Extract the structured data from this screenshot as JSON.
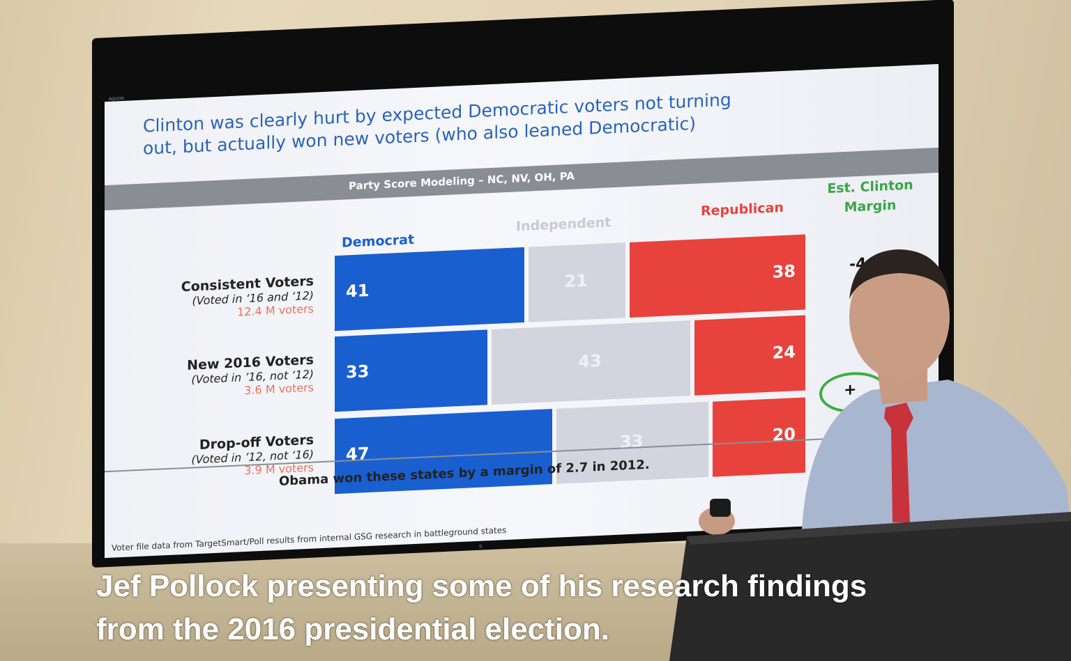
{
  "slide": {
    "brand": "AQUOS",
    "headline_line1": "Clinton was clearly hurt by expected Democratic voters not turning",
    "headline_line2": "out, but actually won new voters (who also leaned Democratic)",
    "band_title": "Party Score Modeling – NC, NV, OH, PA",
    "columns": {
      "democrat": "Democrat",
      "independent": "Independent",
      "republican": "Republican",
      "margin_line1": "Est. Clinton",
      "margin_line2": "Margin"
    },
    "rows": [
      {
        "title": "Consistent Voters",
        "sub": "(Voted in ‘16 and ‘12)",
        "count": "12.4 M voters",
        "dem": "41",
        "ind": "21",
        "rep": "38",
        "margin": "-4"
      },
      {
        "title": "New 2016 Voters",
        "sub": "(Voted in ’16, not ‘12)",
        "count": "3.6 M voters",
        "dem": "33",
        "ind": "43",
        "rep": "24",
        "margin": "+"
      },
      {
        "title": "Drop-off Voters",
        "sub": "(Voted in ’12, not ‘16)",
        "count": "3.9 M voters",
        "dem": "47",
        "ind": "33",
        "rep": "20",
        "margin": "+"
      }
    ],
    "footnote": "Obama won these states by a margin of 2.7 in 2012.",
    "source": "Voter file data from TargetSmart/Poll results from internal GSG research in battleground states"
  },
  "colors": {
    "democrat": "#1a5fd0",
    "independent": "#d4d4de",
    "republican": "#e8423c",
    "margin_header": "#3aa548",
    "headline": "#2a63b8"
  },
  "caption": {
    "line1": "Jef Pollock presenting some of his research findings",
    "line2": "from the 2016 presidential election."
  }
}
